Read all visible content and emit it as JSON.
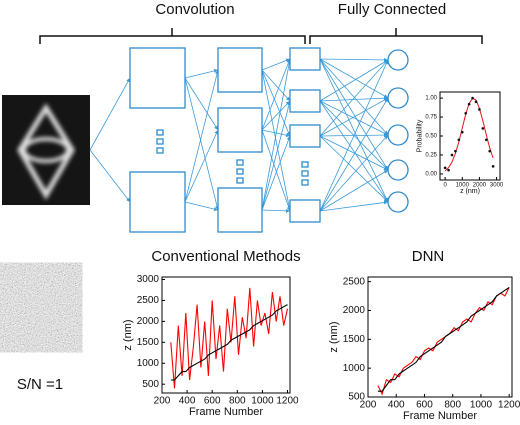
{
  "labels": {
    "convolution": "Convolution",
    "fully_connected": "Fully Connected",
    "snr": "S/N =1"
  },
  "chart_data": [
    {
      "type": "line",
      "xlabel": "z (nm)",
      "ylabel": "Probability",
      "x": [
        0,
        200,
        400,
        600,
        800,
        1000,
        1200,
        1400,
        1600,
        1800,
        2000,
        2200,
        2400,
        2600,
        2800
      ],
      "series": [
        {
          "color": "#e8141c",
          "style": "line",
          "values": [
            0.04,
            0.083,
            0.157,
            0.271,
            0.425,
            0.607,
            0.787,
            0.929,
            0.997,
            0.974,
            0.865,
            0.699,
            0.514,
            0.344,
            0.209
          ]
        },
        {
          "color": "#111111",
          "style": "points",
          "values": [
            0.08,
            0.05,
            0.25,
            0.3,
            0.45,
            0.55,
            0.8,
            0.92,
            1.0,
            0.95,
            0.85,
            0.6,
            0.45,
            0.3,
            0.1
          ]
        }
      ],
      "xlim": [
        -300,
        3200
      ],
      "ylim": [
        -0.08,
        1.08
      ],
      "xticks": [
        0,
        1000,
        2000,
        3000
      ],
      "yticks": [
        {
          "value": 0,
          "label": "0.00"
        },
        {
          "value": 0.25,
          "label": "0.25"
        },
        {
          "value": 0.5,
          "label": "0.50"
        },
        {
          "value": 0.75,
          "label": "0.75"
        },
        {
          "value": 1,
          "label": "1.00"
        }
      ]
    },
    {
      "type": "line",
      "title": "Conventional Methods",
      "xlabel": "Frame Number",
      "ylabel": "z (nm)",
      "x": [
        270,
        300,
        330,
        360,
        390,
        420,
        450,
        480,
        510,
        540,
        570,
        600,
        630,
        660,
        690,
        720,
        750,
        780,
        810,
        840,
        870,
        900,
        930,
        960,
        990,
        1020,
        1050,
        1080,
        1110,
        1140,
        1170,
        1200
      ],
      "series": [
        {
          "color": "#ff0000",
          "style": "line",
          "values": [
            1500,
            400,
            1900,
            700,
            2200,
            600,
            1400,
            2400,
            900,
            2000,
            700,
            2500,
            1100,
            1900,
            800,
            2300,
            1500,
            2600,
            1200,
            2100,
            1600,
            2800,
            1400,
            2500,
            1900,
            2200,
            1700,
            2700,
            2000,
            2600,
            1900,
            2300
          ]
        },
        {
          "color": "#000000",
          "style": "line",
          "values": [
            600,
            600,
            700,
            800,
            800,
            900,
            950,
            1000,
            1050,
            1100,
            1200,
            1250,
            1300,
            1350,
            1400,
            1450,
            1550,
            1600,
            1650,
            1700,
            1750,
            1800,
            1900,
            1950,
            2000,
            2050,
            2100,
            2150,
            2250,
            2300,
            2350,
            2400
          ]
        }
      ],
      "xlim": [
        200,
        1220
      ],
      "ylim": [
        290,
        3060
      ],
      "xticks": [
        200,
        400,
        600,
        800,
        1000,
        1200
      ],
      "yticks": [
        500,
        1000,
        1500,
        2000,
        2500,
        3000
      ]
    },
    {
      "type": "line",
      "title": "DNN",
      "xlabel": "Frame Number",
      "ylabel": "z (nm)",
      "x": [
        270,
        300,
        330,
        360,
        390,
        420,
        450,
        480,
        510,
        540,
        570,
        600,
        630,
        660,
        690,
        720,
        750,
        780,
        810,
        840,
        870,
        900,
        930,
        960,
        990,
        1020,
        1050,
        1080,
        1110,
        1140,
        1170,
        1200
      ],
      "series": [
        {
          "color": "#ff0000",
          "style": "line",
          "values": [
            700,
            550,
            800,
            750,
            900,
            850,
            1000,
            1050,
            1100,
            1200,
            1150,
            1300,
            1350,
            1300,
            1450,
            1500,
            1550,
            1600,
            1700,
            1650,
            1800,
            1850,
            1800,
            1950,
            2050,
            2000,
            2150,
            2100,
            2250,
            2300,
            2250,
            2400
          ]
        },
        {
          "color": "#000000",
          "style": "line",
          "values": [
            600,
            600,
            700,
            800,
            800,
            900,
            950,
            1000,
            1050,
            1100,
            1200,
            1250,
            1300,
            1350,
            1400,
            1450,
            1550,
            1600,
            1650,
            1700,
            1750,
            1800,
            1900,
            1950,
            2000,
            2050,
            2100,
            2150,
            2250,
            2300,
            2350,
            2400
          ]
        }
      ],
      "xlim": [
        200,
        1220
      ],
      "ylim": [
        500,
        2580
      ],
      "xticks": [
        200,
        400,
        600,
        800,
        1000,
        1200
      ],
      "yticks": [
        500,
        1000,
        1500,
        2000,
        2500
      ]
    }
  ]
}
